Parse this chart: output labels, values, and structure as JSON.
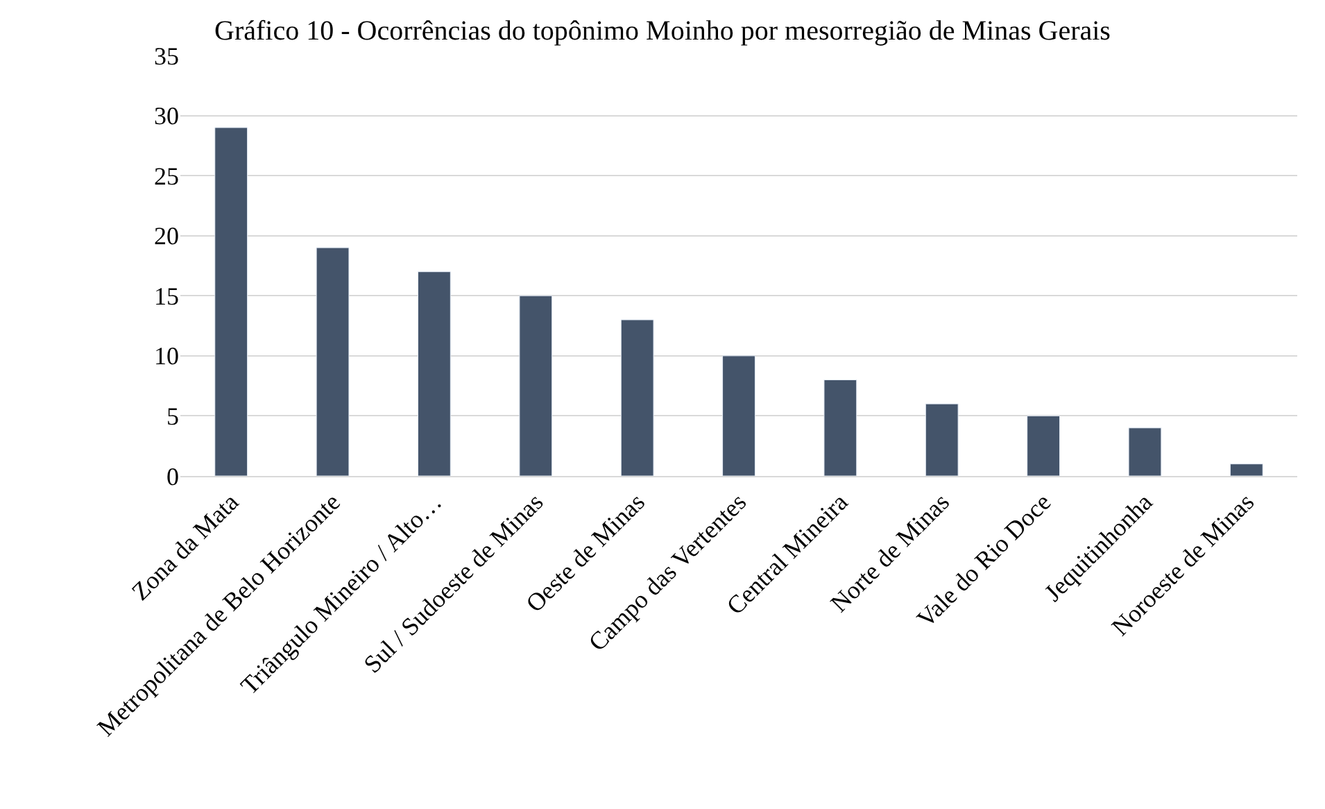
{
  "chart_data": {
    "type": "bar",
    "title": "Gráfico 10 - Ocorrências do topônimo Moinho por mesorregião de Minas Gerais",
    "categories": [
      "Zona da Mata",
      "Metropolitana de Belo Horizonte",
      "Triângulo Mineiro / Alto…",
      "Sul / Sudoeste de Minas",
      "Oeste de Minas",
      "Campo das Vertentes",
      "Central Mineira",
      "Norte de Minas",
      "Vale do Rio Doce",
      "Jequitinhonha",
      "Noroeste de Minas"
    ],
    "values": [
      29,
      19,
      17,
      15,
      13,
      10,
      8,
      6,
      5,
      4,
      1
    ],
    "color": "#44546a",
    "ylim": [
      0,
      35
    ],
    "yticks": [
      0,
      5,
      10,
      15,
      20,
      25,
      30,
      35
    ],
    "grid": "y"
  }
}
